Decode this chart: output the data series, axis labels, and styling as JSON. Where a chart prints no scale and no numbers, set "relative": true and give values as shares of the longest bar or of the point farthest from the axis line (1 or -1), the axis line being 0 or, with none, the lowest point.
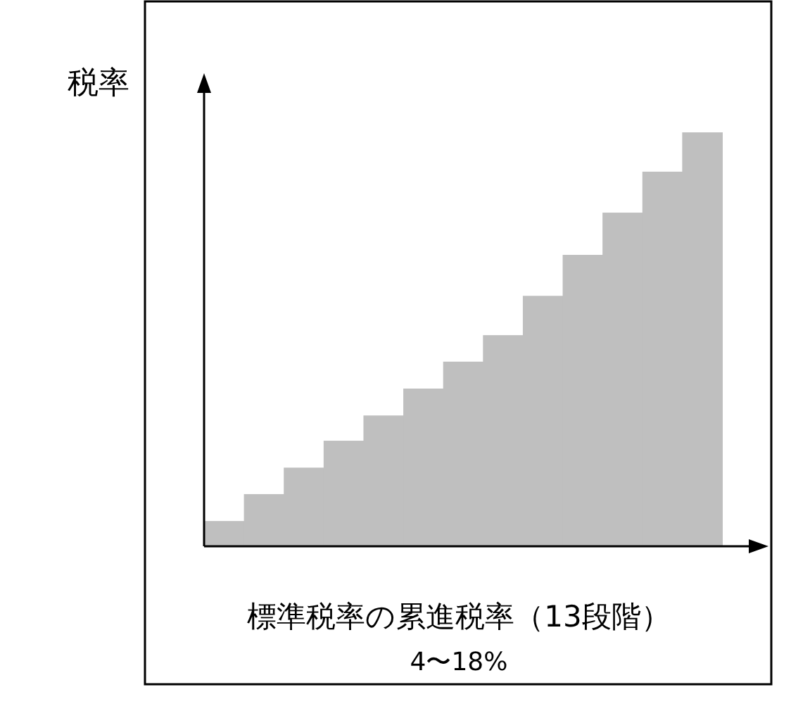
{
  "chart_data": {
    "type": "bar",
    "relative": true,
    "categories": [
      null,
      null,
      null,
      null,
      null,
      null,
      null,
      null,
      null,
      null,
      null,
      null,
      null
    ],
    "values": [
      0.061,
      0.126,
      0.19,
      0.255,
      0.316,
      0.381,
      0.446,
      0.51,
      0.605,
      0.704,
      0.806,
      0.905,
      1
    ],
    "color": "#bfbfbf",
    "ylabel": "税率",
    "xlabel": "標準税率の累進税率（13段階）",
    "annotations": [
      "4〜18%"
    ]
  }
}
